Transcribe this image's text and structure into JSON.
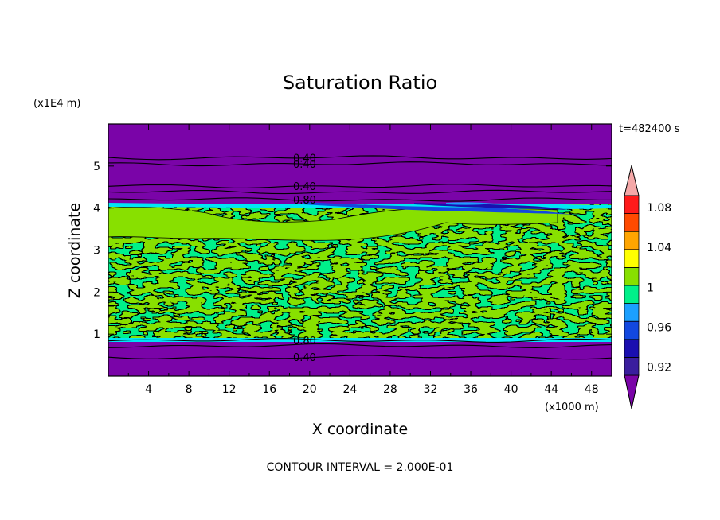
{
  "chart_data": {
    "type": "heatmap",
    "subtype": "filled-contour",
    "title": "Saturation Ratio",
    "xlabel": "X coordinate",
    "ylabel": "Z coordinate",
    "x_unit_label": "(x1000 m)",
    "y_unit_label": "(x1E4 m)",
    "time_label": "t=482400 s",
    "footer": "CONTOUR INTERVAL = 2.000E-01",
    "xlim": [
      0,
      50
    ],
    "ylim": [
      0,
      6
    ],
    "x_ticks": [
      4,
      8,
      12,
      16,
      20,
      24,
      28,
      32,
      36,
      40,
      44,
      48
    ],
    "x_tick_labels": [
      "4",
      "8",
      "12",
      "16",
      "20",
      "24",
      "28",
      "32",
      "36",
      "40",
      "44",
      "48"
    ],
    "y_ticks": [
      1,
      2,
      3,
      4,
      5
    ],
    "y_tick_labels": [
      "1",
      "2",
      "3",
      "4",
      "5"
    ],
    "background_value": 0.4,
    "contour_lines": [
      {
        "z": 0.45,
        "value": 0.4,
        "label": "0.40"
      },
      {
        "z": 0.72,
        "value": null,
        "label": ""
      },
      {
        "z": 0.85,
        "value": 0.8,
        "label": "0.80"
      },
      {
        "z": 4.2,
        "value": 0.8,
        "label": "0.80"
      },
      {
        "z": 4.38,
        "value": null,
        "label": ""
      },
      {
        "z": 4.52,
        "value": 0.4,
        "label": "0.40"
      },
      {
        "z": 5.05,
        "value": 0.4,
        "label": "0.40"
      },
      {
        "z": 5.2,
        "value": 0.4,
        "label": "0.40"
      }
    ],
    "regions": [
      {
        "name": "lower-dry-layer",
        "z_range": [
          0,
          0.9
        ],
        "value": 0.4
      },
      {
        "name": "cloud-layer",
        "z_range": [
          0.9,
          4.1
        ],
        "value": 0.99,
        "patch_value": 1.01
      },
      {
        "name": "upper-dry-layer",
        "z_range": [
          4.1,
          6
        ],
        "value": 0.4
      },
      {
        "name": "inversion-thin-band",
        "x_range": [
          30,
          46
        ],
        "z_center": 4.05,
        "values": [
          0.92,
          0.96
        ]
      }
    ],
    "colorbar": {
      "levels": [
        0.92,
        0.94,
        0.96,
        0.98,
        1.0,
        1.02,
        1.04,
        1.06,
        1.08,
        1.1
      ],
      "colors": [
        "#3a1e9e",
        "#1a0fb0",
        "#1248e0",
        "#1ba0ff",
        "#00f08a",
        "#88e000",
        "#ffff00",
        "#ffa500",
        "#ff4a00",
        "#ff1a1a"
      ],
      "under_color": "#7a04a8",
      "over_color": "#f5a8a8",
      "tick_labels": [
        "0.92",
        "0.96",
        "1",
        "1.04",
        "1.08"
      ],
      "tick_values": [
        0.92,
        0.96,
        1.0,
        1.04,
        1.08
      ]
    },
    "colors": {
      "purple": "#7a04a8",
      "cyan_green": "#00f08a",
      "yellow_green": "#88e000",
      "dark_blue": "#1a0fb0",
      "mid_blue": "#1248e0",
      "light_blue": "#1ba0ff",
      "cyan": "#00e6f5"
    }
  }
}
